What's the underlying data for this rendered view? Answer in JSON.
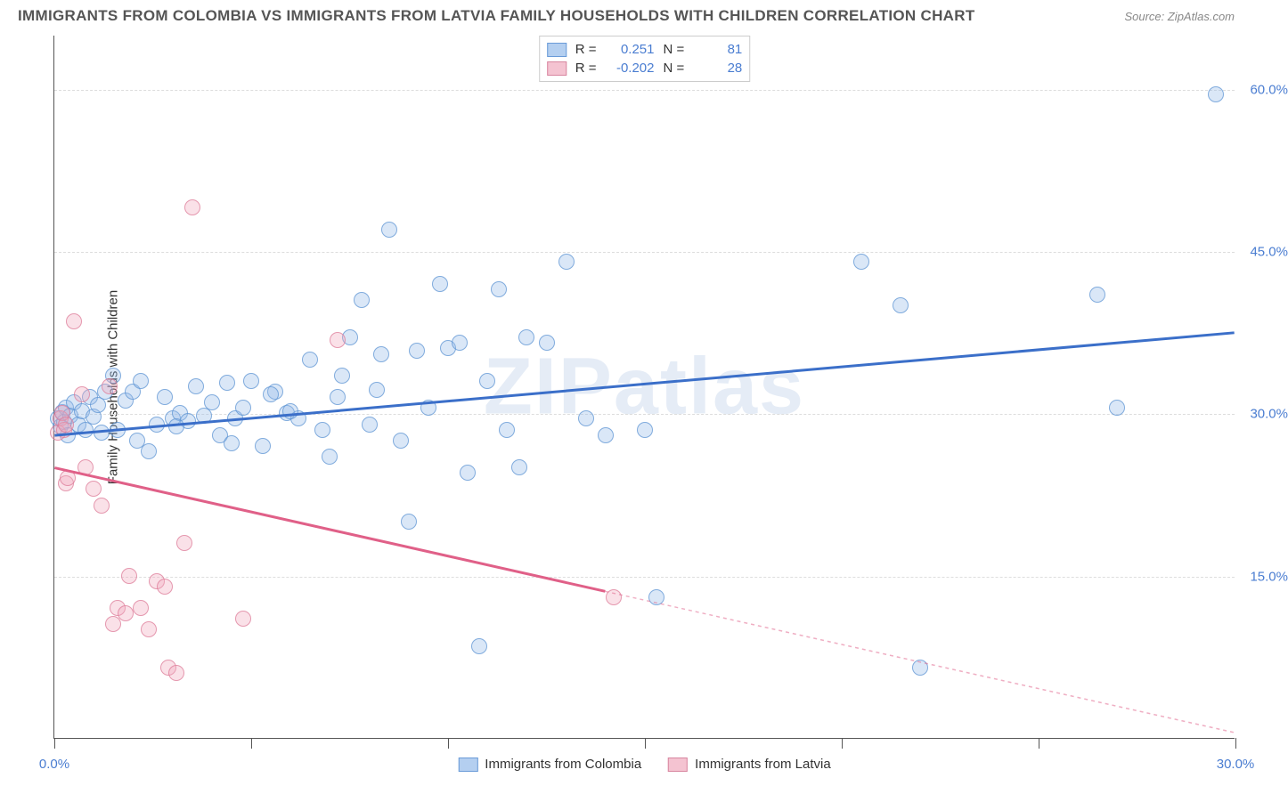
{
  "title": "IMMIGRANTS FROM COLOMBIA VS IMMIGRANTS FROM LATVIA FAMILY HOUSEHOLDS WITH CHILDREN CORRELATION CHART",
  "source": "Source: ZipAtlas.com",
  "watermark": "ZIPatlas",
  "chart": {
    "type": "scatter-correlation",
    "ylabel": "Family Households with Children",
    "xlim": [
      0,
      30
    ],
    "ylim": [
      0,
      65
    ],
    "x_ticks": [
      0,
      5,
      10,
      15,
      20,
      25,
      30
    ],
    "x_tick_labels": {
      "0": "0.0%",
      "30": "30.0%"
    },
    "y_gridlines": [
      15,
      30,
      45,
      60
    ],
    "y_tick_labels": {
      "15": "15.0%",
      "30": "30.0%",
      "45": "45.0%",
      "60": "60.0%"
    },
    "background_color": "#ffffff",
    "grid_color": "#dddddd",
    "axis_color": "#555555",
    "dot_radius": 9,
    "series": [
      {
        "name": "Immigrants from Colombia",
        "color_fill": "rgba(148,187,233,0.35)",
        "color_stroke": "rgba(90,145,210,0.7)",
        "class": "blue",
        "R": "0.251",
        "N": "81",
        "trend": {
          "x1": 0,
          "y1": 28.0,
          "x2": 30,
          "y2": 37.5,
          "color": "#3b6fc9",
          "width": 3,
          "dash_from_x": null
        },
        "points": [
          [
            0.1,
            29.5
          ],
          [
            0.15,
            28.8
          ],
          [
            0.2,
            30.1
          ],
          [
            0.25,
            29.2
          ],
          [
            0.3,
            30.5
          ],
          [
            0.35,
            28.0
          ],
          [
            0.4,
            29.8
          ],
          [
            0.5,
            31.0
          ],
          [
            0.6,
            29.0
          ],
          [
            0.7,
            30.2
          ],
          [
            0.8,
            28.5
          ],
          [
            0.9,
            31.5
          ],
          [
            1.0,
            29.7
          ],
          [
            1.1,
            30.8
          ],
          [
            1.3,
            32.0
          ],
          [
            1.5,
            33.5
          ],
          [
            1.6,
            28.5
          ],
          [
            1.8,
            31.2
          ],
          [
            2.0,
            32.0
          ],
          [
            2.2,
            33.0
          ],
          [
            2.4,
            26.5
          ],
          [
            2.6,
            29.0
          ],
          [
            2.8,
            31.5
          ],
          [
            3.0,
            29.5
          ],
          [
            3.2,
            30.0
          ],
          [
            3.4,
            29.3
          ],
          [
            3.6,
            32.5
          ],
          [
            3.8,
            29.8
          ],
          [
            4.0,
            31.0
          ],
          [
            4.2,
            28.0
          ],
          [
            4.4,
            32.8
          ],
          [
            4.6,
            29.5
          ],
          [
            4.8,
            30.5
          ],
          [
            5.0,
            33.0
          ],
          [
            5.3,
            27.0
          ],
          [
            5.6,
            32.0
          ],
          [
            5.9,
            30.0
          ],
          [
            6.2,
            29.5
          ],
          [
            6.5,
            35.0
          ],
          [
            6.8,
            28.5
          ],
          [
            7.0,
            26.0
          ],
          [
            7.3,
            33.5
          ],
          [
            7.5,
            37.0
          ],
          [
            7.8,
            40.5
          ],
          [
            8.0,
            29.0
          ],
          [
            8.3,
            35.5
          ],
          [
            8.5,
            47.0
          ],
          [
            8.8,
            27.5
          ],
          [
            9.0,
            20.0
          ],
          [
            9.2,
            35.8
          ],
          [
            9.5,
            30.5
          ],
          [
            9.8,
            42.0
          ],
          [
            10.0,
            36.0
          ],
          [
            10.3,
            36.5
          ],
          [
            10.5,
            24.5
          ],
          [
            10.8,
            8.5
          ],
          [
            11.0,
            33.0
          ],
          [
            11.3,
            41.5
          ],
          [
            11.5,
            28.5
          ],
          [
            11.8,
            25.0
          ],
          [
            12.0,
            37.0
          ],
          [
            12.5,
            36.5
          ],
          [
            13.0,
            44.0
          ],
          [
            13.5,
            29.5
          ],
          [
            14.0,
            28.0
          ],
          [
            15.0,
            28.5
          ],
          [
            15.3,
            13.0
          ],
          [
            20.5,
            44.0
          ],
          [
            21.5,
            40.0
          ],
          [
            22.0,
            6.5
          ],
          [
            26.5,
            41.0
          ],
          [
            27.0,
            30.5
          ],
          [
            29.5,
            59.5
          ],
          [
            1.2,
            28.2
          ],
          [
            2.1,
            27.5
          ],
          [
            3.1,
            28.8
          ],
          [
            4.5,
            27.2
          ],
          [
            5.5,
            31.8
          ],
          [
            6.0,
            30.2
          ],
          [
            7.2,
            31.5
          ],
          [
            8.2,
            32.2
          ]
        ]
      },
      {
        "name": "Immigrants from Latvia",
        "color_fill": "rgba(240,170,190,0.35)",
        "color_stroke": "rgba(220,120,150,0.7)",
        "class": "pink",
        "R": "-0.202",
        "N": "28",
        "trend": {
          "x1": 0,
          "y1": 25.0,
          "x2": 30,
          "y2": 0.5,
          "color": "#e06088",
          "width": 3,
          "dash_from_x": 14
        },
        "points": [
          [
            0.1,
            28.2
          ],
          [
            0.15,
            29.5
          ],
          [
            0.2,
            30.0
          ],
          [
            0.25,
            28.5
          ],
          [
            0.3,
            29.0
          ],
          [
            0.3,
            23.5
          ],
          [
            0.35,
            24.0
          ],
          [
            0.5,
            38.5
          ],
          [
            0.7,
            31.8
          ],
          [
            0.8,
            25.0
          ],
          [
            1.0,
            23.0
          ],
          [
            1.2,
            21.5
          ],
          [
            1.4,
            32.5
          ],
          [
            1.5,
            10.5
          ],
          [
            1.6,
            12.0
          ],
          [
            1.8,
            11.5
          ],
          [
            1.9,
            15.0
          ],
          [
            2.2,
            12.0
          ],
          [
            2.4,
            10.0
          ],
          [
            2.6,
            14.5
          ],
          [
            2.8,
            14.0
          ],
          [
            2.9,
            6.5
          ],
          [
            3.1,
            6.0
          ],
          [
            3.3,
            18.0
          ],
          [
            3.5,
            49.0
          ],
          [
            4.8,
            11.0
          ],
          [
            7.2,
            36.8
          ],
          [
            14.2,
            13.0
          ]
        ]
      }
    ],
    "legend_top_labels": {
      "R": "R =",
      "N": "N ="
    },
    "legend_bottom": [
      {
        "class": "blue",
        "label": "Immigrants from Colombia"
      },
      {
        "class": "pink",
        "label": "Immigrants from Latvia"
      }
    ]
  }
}
